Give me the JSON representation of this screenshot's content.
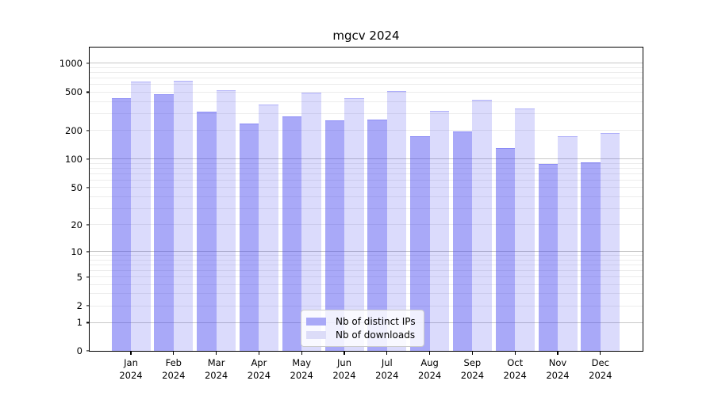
{
  "title": "mgcv 2024",
  "colors": {
    "bar_ips_fill": "rgba(64,64,240,0.45)",
    "bar_downloads_fill": "rgba(64,64,240,0.19)",
    "bar_edge": "rgba(64,64,240,0.28)",
    "grid_major": "#c8c8c8",
    "grid_minor": "#ececec",
    "axis": "#000000",
    "legend_swatch_ips": "#a9a9f7",
    "legend_swatch_downloads": "#dcdcf8"
  },
  "legend": {
    "items": [
      {
        "label": "Nb of distinct IPs",
        "series": "ips"
      },
      {
        "label": "Nb of downloads",
        "series": "downloads"
      }
    ]
  },
  "y_axis": {
    "tick_values": [
      0,
      1,
      2,
      5,
      10,
      20,
      50,
      100,
      200,
      500,
      1000
    ]
  },
  "x_axis": {
    "year": "2024",
    "months": [
      "Jan",
      "Feb",
      "Mar",
      "Apr",
      "May",
      "Jun",
      "Jul",
      "Aug",
      "Sep",
      "Oct",
      "Nov",
      "Dec"
    ]
  },
  "chart_data": {
    "type": "bar",
    "title": "mgcv 2024",
    "categories": [
      "Jan 2024",
      "Feb 2024",
      "Mar 2024",
      "Apr 2024",
      "May 2024",
      "Jun 2024",
      "Jul 2024",
      "Aug 2024",
      "Sep 2024",
      "Oct 2024",
      "Nov 2024",
      "Dec 2024"
    ],
    "series": [
      {
        "name": "Nb of distinct IPs",
        "values": [
          430,
          478,
          312,
          235,
          278,
          252,
          258,
          174,
          193,
          130,
          89,
          92
        ]
      },
      {
        "name": "Nb of downloads",
        "values": [
          641,
          655,
          521,
          370,
          495,
          433,
          515,
          318,
          415,
          341,
          173,
          187
        ]
      }
    ],
    "yscale": "log1p",
    "ylim": [
      0,
      1450
    ],
    "y_ticks": [
      0,
      1,
      2,
      5,
      10,
      20,
      50,
      100,
      200,
      500,
      1000
    ],
    "grid": true,
    "legend_position": "lower center"
  }
}
